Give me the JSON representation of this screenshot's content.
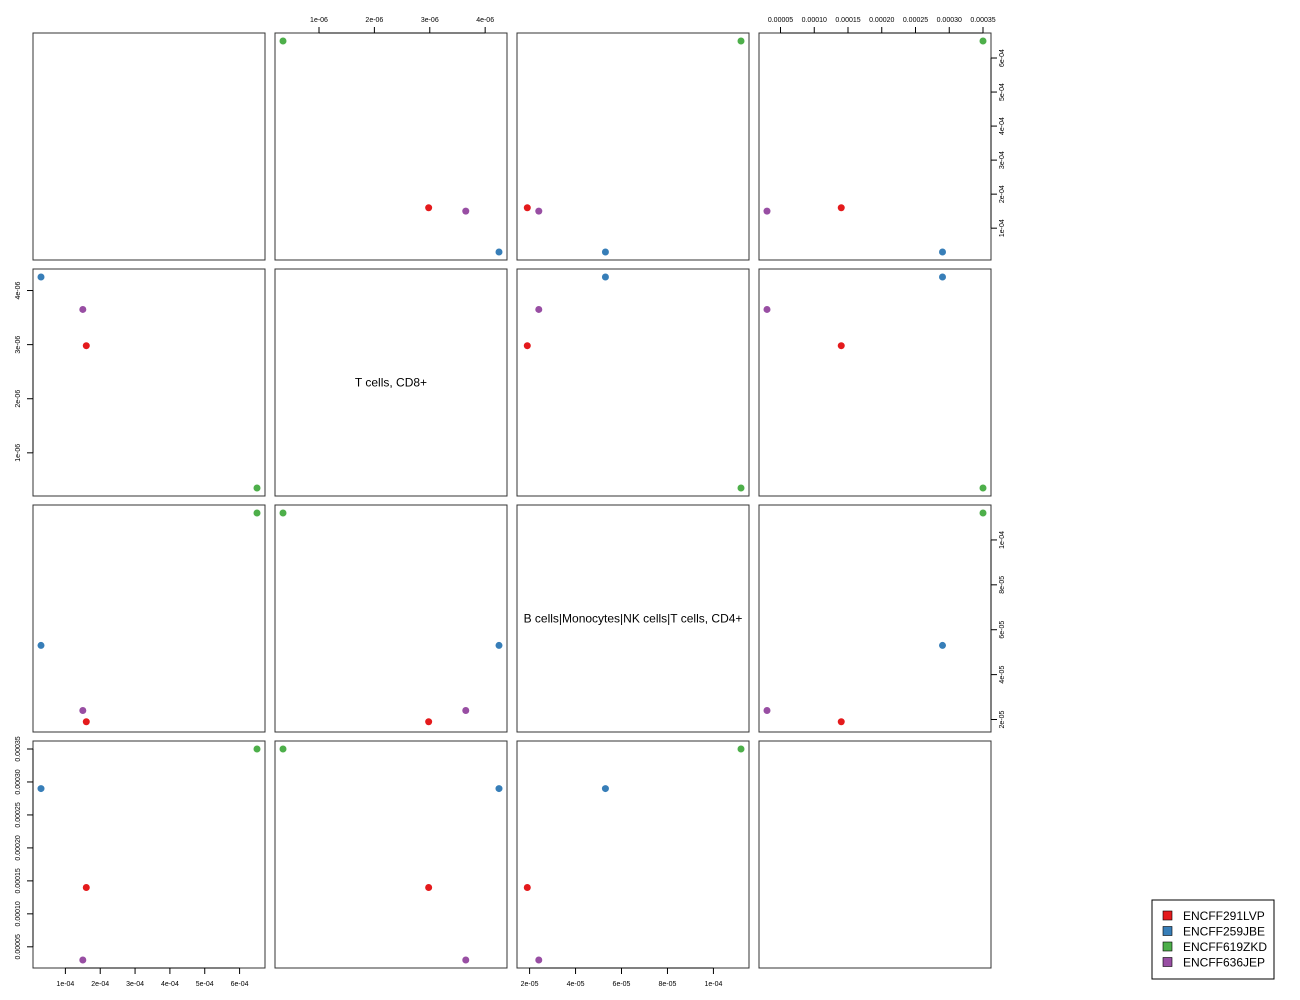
{
  "chart_data": {
    "type": "scatter-matrix",
    "variables": [
      {
        "name": "",
        "ticks": [
          0.0001,
          0.0002,
          0.0003,
          0.0004,
          0.0005,
          0.0006
        ],
        "tick_labels": [
          "1e-04",
          "2e-04",
          "3e-04",
          "4e-04",
          "5e-04",
          "6e-04"
        ],
        "range": [
          3e-05,
          0.00065
        ]
      },
      {
        "name": "T cells, CD8+",
        "ticks": [
          1e-06,
          2e-06,
          3e-06,
          4e-06
        ],
        "tick_labels": [
          "1e-06",
          "2e-06",
          "3e-06",
          "4e-06"
        ],
        "range": [
          3.5e-07,
          4.25e-06
        ]
      },
      {
        "name": "B cells|Monocytes|NK cells|T cells, CD4+",
        "ticks": [
          2e-05,
          4e-05,
          6e-05,
          8e-05,
          0.0001
        ],
        "tick_labels": [
          "2e-05",
          "4e-05",
          "6e-05",
          "8e-05",
          "1e-04"
        ],
        "range": [
          1.8e-05,
          0.000112
        ]
      },
      {
        "name": "",
        "ticks": [
          5e-05,
          0.0001,
          0.00015,
          0.0002,
          0.00025,
          0.0003,
          0.00035
        ],
        "tick_labels": [
          "0.00005",
          "0.00010",
          "0.00015",
          "0.00020",
          "0.00025",
          "0.00030",
          "0.00035"
        ],
        "range": [
          3e-05,
          0.00035
        ]
      }
    ],
    "empty_panels": [
      [
        0,
        0
      ],
      [
        3,
        3
      ]
    ],
    "series": [
      {
        "name": "ENCFF291LVP",
        "color": "#E41A1C",
        "values": [
          0.00016,
          2.98e-06,
          1.9e-05,
          0.00014
        ]
      },
      {
        "name": "ENCFF259JBE",
        "color": "#377EB8",
        "values": [
          3e-05,
          4.25e-06,
          5.3e-05,
          0.00029
        ]
      },
      {
        "name": "ENCFF619ZKD",
        "color": "#4DAF4A",
        "values": [
          0.00065,
          3.5e-07,
          0.000112,
          0.00035
        ]
      },
      {
        "name": "ENCFF636JEP",
        "color": "#984EA3",
        "values": [
          0.00015,
          3.65e-06,
          2.4e-05,
          3e-05
        ]
      }
    ],
    "legend_position": "bottom-right"
  }
}
